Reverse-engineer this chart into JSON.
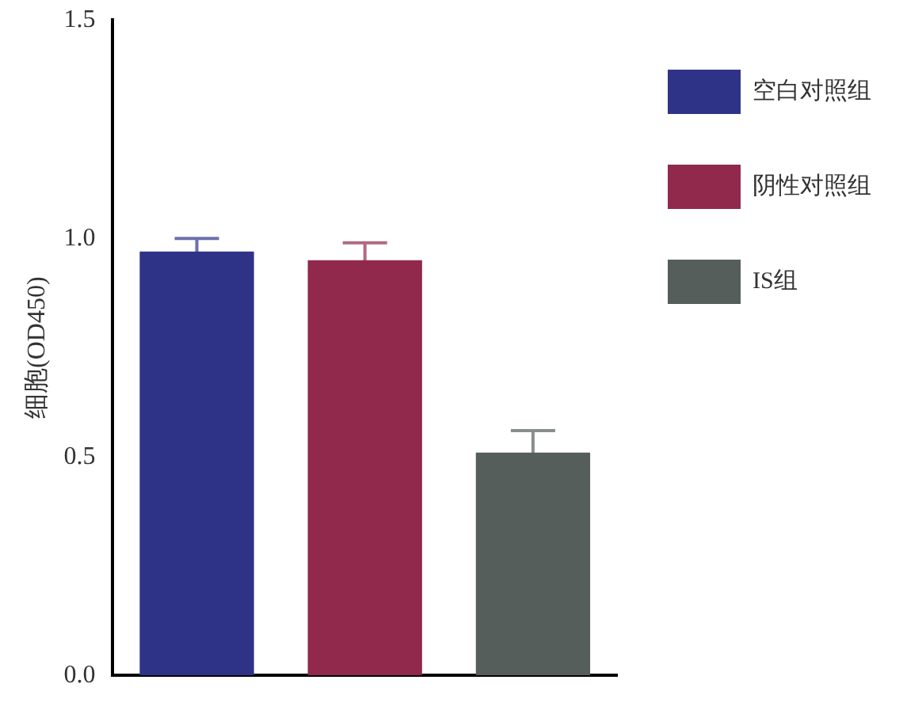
{
  "chart_data": {
    "type": "bar",
    "ylabel": "细胞(OD450)",
    "categories": [
      null,
      null,
      null
    ],
    "series": [
      {
        "name": "空白对照组",
        "color": "#2f3387",
        "values": [
          0.97,
          null,
          null
        ],
        "errors": [
          0.03,
          null,
          null
        ]
      },
      {
        "name": "阴性对照组",
        "color": "#90294b",
        "values": [
          null,
          0.95,
          null
        ],
        "errors": [
          null,
          0.04,
          null
        ]
      },
      {
        "name": "IS组",
        "color": "#565e5b",
        "values": [
          null,
          null,
          0.51
        ],
        "errors": [
          null,
          null,
          0.05
        ]
      }
    ],
    "ylim": [
      0,
      1.5
    ],
    "yticks": [
      {
        "value": 0,
        "label": "0.0"
      },
      {
        "value": 0.5,
        "label": "0.5"
      },
      {
        "value": 1,
        "label": "1.0"
      },
      {
        "value": 1.5,
        "label": "1.5"
      }
    ],
    "grid": false,
    "legend": "right"
  }
}
